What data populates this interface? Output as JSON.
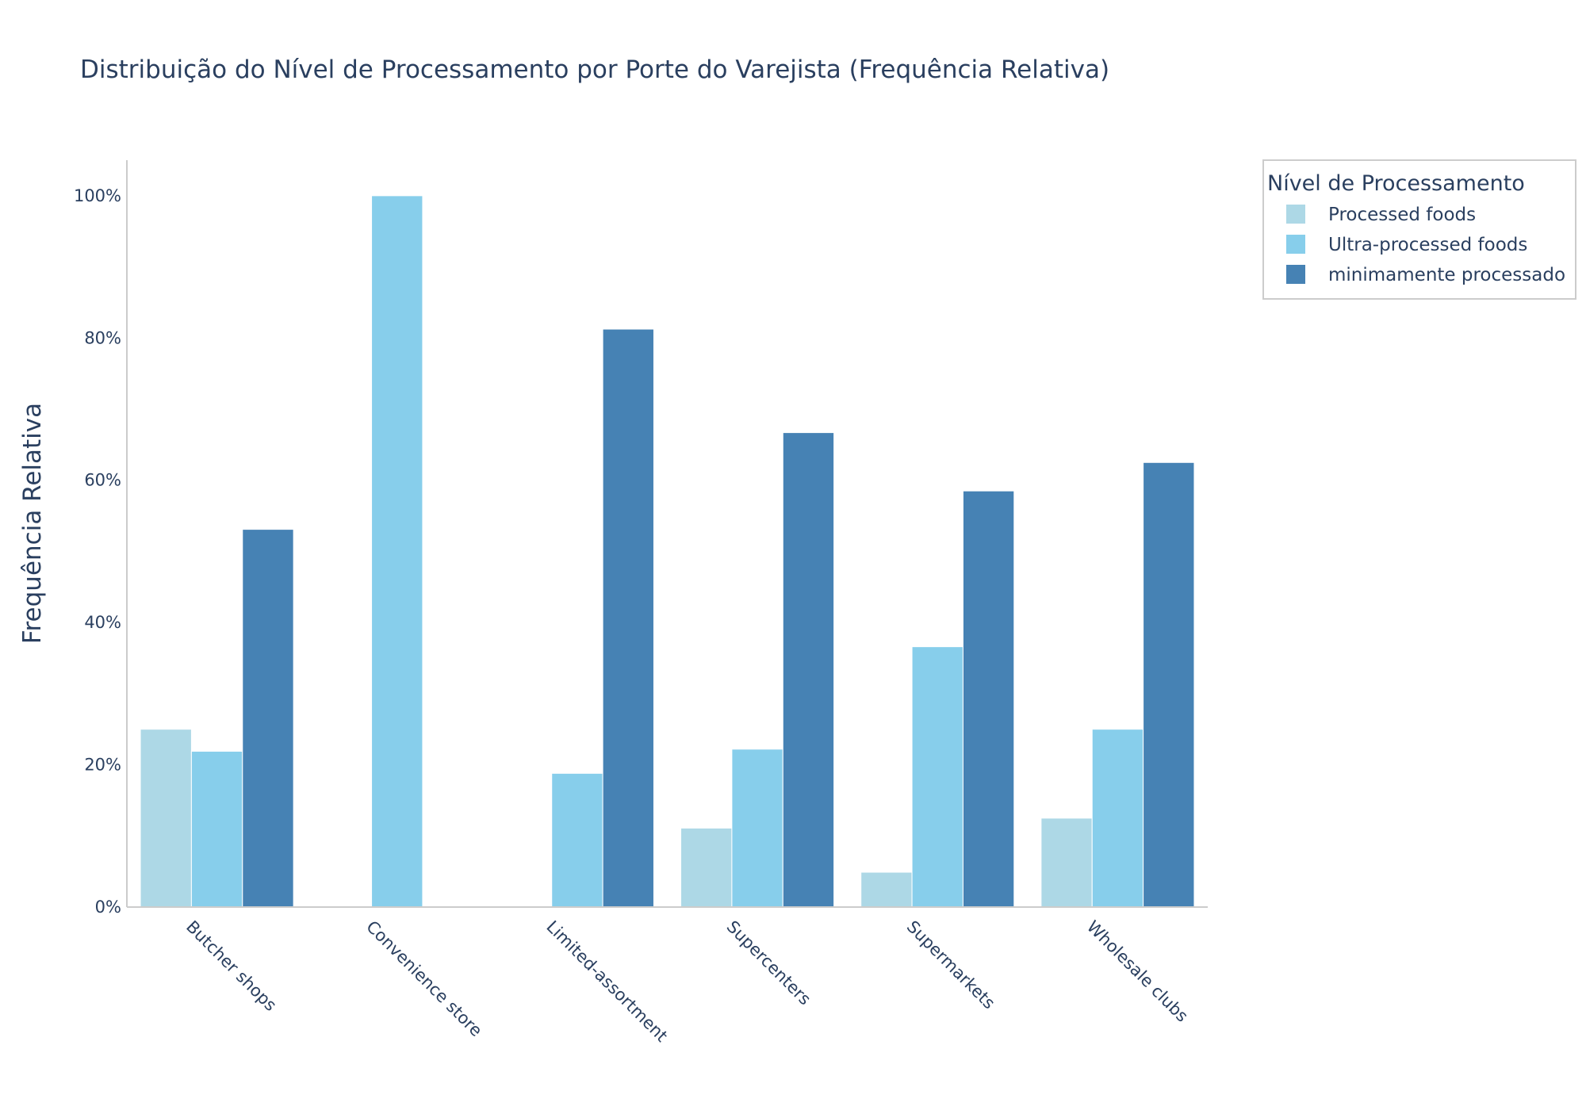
{
  "chart_data": {
    "type": "bar",
    "title": "Distribuição do Nível de Processamento por Porte do Varejista (Frequência Relativa)",
    "xlabel": "",
    "ylabel": "Frequência Relativa",
    "ylim": [
      0,
      1.05
    ],
    "yticks": [
      {
        "value": 0,
        "label": "0%"
      },
      {
        "value": 0.2,
        "label": "20%"
      },
      {
        "value": 0.4,
        "label": "40%"
      },
      {
        "value": 0.6,
        "label": "60%"
      },
      {
        "value": 0.8,
        "label": "80%"
      },
      {
        "value": 1.0,
        "label": "100%"
      }
    ],
    "categories": [
      "Butcher shops",
      "Convenience store",
      "Limited-assortment",
      "Supercenters",
      "Supermarkets",
      "Wholesale clubs"
    ],
    "legend_title": "Nível de Processamento",
    "legend_position": "top-right",
    "grid": false,
    "series": [
      {
        "name": "Processed foods",
        "color": "#add8e6",
        "values": [
          0.25,
          0.0,
          0.0,
          0.111,
          0.049,
          0.125
        ]
      },
      {
        "name": "Ultra-processed foods",
        "color": "#87ceeb",
        "values": [
          0.219,
          1.0,
          0.188,
          0.222,
          0.366,
          0.25
        ]
      },
      {
        "name": "minimamente processado",
        "color": "#4682b4",
        "values": [
          0.531,
          0.0,
          0.8125,
          0.667,
          0.585,
          0.625
        ]
      }
    ]
  }
}
